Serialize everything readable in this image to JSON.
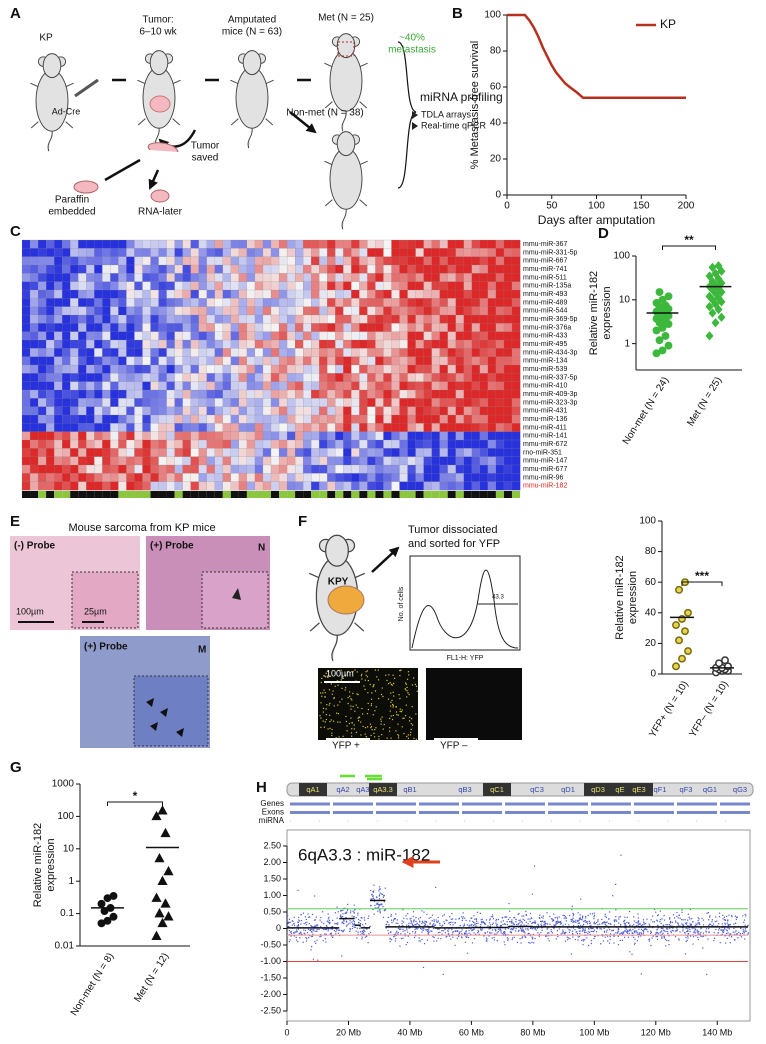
{
  "panel_labels": {
    "a": "A",
    "b": "B",
    "c": "C",
    "d": "D",
    "e": "E",
    "f": "F",
    "g": "G",
    "h": "H"
  },
  "panel_a": {
    "kp": "KP",
    "tumor_1": "Tumor:",
    "tumor_2": "6–10 wk",
    "amputated_1": "Amputated",
    "amputated_2": "mice (N = 63)",
    "met": "Met (N = 25)",
    "rate_1": "~40%",
    "rate_2": "metastasis",
    "ad_cre": "Ad-Cre",
    "non_met": "Non-met (N = 38)",
    "profiling": "miRNA profiling",
    "method_1": "TDLA arrays",
    "method_2": "Real-time qPCR",
    "saved_1": "Tumor",
    "saved_2": "saved",
    "paraffin_1": "Paraffin",
    "paraffin_2": "embedded",
    "rna_later": "RNA-later"
  },
  "heatmap_c": {
    "rows": [
      "mmu-miR-367",
      "mmu-miR-331-5p",
      "mmu-miR-667",
      "mmu-miR-741",
      "mmu-miR-511",
      "mmu-miR-135a",
      "mmu-miR-493",
      "mmu-miR-489",
      "mmu-miR-544",
      "mmu-miR-369-5p",
      "mmu-miR-376a",
      "mmu-miR-433",
      "mmu-miR-495",
      "mmu-miR-434-3p",
      "mmu-miR-134",
      "mmu-miR-539",
      "mmu-miR-337-5p",
      "mmu-miR-410",
      "mmu-miR-409-3p",
      "mmu-miR-323-3p",
      "mmu-miR-431",
      "mmu-miR-136",
      "mmu-miR-411",
      "mmu-miR-141",
      "mmu-miR-672",
      "rno-miR-351",
      "mmu-miR-147",
      "mmu-miR-677",
      "mmu-miR-96",
      "mmu-miR-182"
    ],
    "highlight_index": 29,
    "highlight_color": "#e0201b"
  },
  "panel_e": {
    "title": "Mouse sarcoma from KP mice",
    "neg_probe": "(-) Probe",
    "pos_probe_n": "(+) Probe",
    "n": "N",
    "pos_probe_m": "(+) Probe",
    "m": "M",
    "scale_main": "100µm",
    "scale_inset": "25µm"
  },
  "panel_f": {
    "kpy": "KPY",
    "sort_1": "Tumor dissociated",
    "sort_2": "and sorted for YFP",
    "hist_ylabel": "No. of cells",
    "hist_xlabel": "FL1-H: YFP",
    "gate_value": "43.3",
    "scale": "100µm",
    "yfp_pos": "YFP +",
    "yfp_neg": "YFP –"
  },
  "chart_data": [
    {
      "type": "line",
      "ylabel": "% Metastasis-free survival",
      "xlabel": "Days after amputation",
      "x": [
        0,
        20,
        25,
        30,
        35,
        40,
        45,
        50,
        55,
        60,
        65,
        70,
        78,
        85,
        200
      ],
      "series": [
        {
          "name": "KP",
          "color": "#b5301f",
          "values": [
            100,
            100,
            97,
            93,
            88,
            82,
            77,
            72,
            68,
            65,
            62,
            60,
            57,
            54,
            54
          ]
        }
      ],
      "xlim": [
        0,
        200
      ],
      "xticks": [
        0,
        50,
        100,
        150,
        200
      ],
      "ylim": [
        0,
        100
      ],
      "yticks": [
        0,
        20,
        40,
        60,
        80,
        100
      ],
      "legend": "upper right"
    },
    {
      "type": "dot",
      "ylabel_lines": [
        "Relative miR-182",
        "expression"
      ],
      "categories": [
        "Non-met (N = 24)",
        "Met (N = 25)"
      ],
      "values": [
        [
          0.6,
          0.7,
          0.9,
          1.2,
          1.5,
          2,
          2.3,
          2.8,
          3,
          3.3,
          3.7,
          4,
          4.3,
          4.6,
          5,
          5.4,
          5.8,
          6.2,
          6.8,
          7.5,
          8.5,
          10,
          12,
          15
        ],
        [
          1.5,
          3,
          4,
          5,
          6,
          7,
          8,
          9,
          10,
          11,
          12,
          14,
          15,
          17,
          19,
          20,
          22,
          24,
          26,
          30,
          35,
          40,
          45,
          55,
          60
        ]
      ],
      "means": [
        5,
        20
      ],
      "markers": [
        "circle",
        "diamond"
      ],
      "colors": [
        "#3cb83c",
        "#3cb83c"
      ],
      "edge_colors": [
        "#3cb83c",
        "#3cb83c"
      ],
      "log": true,
      "ylim": [
        0.25,
        100
      ],
      "yticks": [
        1,
        10,
        100
      ],
      "significance": "**"
    },
    {
      "type": "dot",
      "ylabel_lines": [
        "Relative miR-182",
        "expression"
      ],
      "categories": [
        "YFP+ (N = 10)",
        "YFP– (N = 10)"
      ],
      "values": [
        [
          5,
          10,
          15,
          22,
          28,
          32,
          36,
          40,
          55,
          60
        ],
        [
          1,
          2,
          2,
          3,
          3,
          4,
          4,
          5,
          7,
          9
        ]
      ],
      "means": [
        37,
        4
      ],
      "markers": [
        "circle",
        "circle"
      ],
      "colors": [
        "#e8d44d",
        "#ffffff"
      ],
      "edge_colors": [
        "#7a6a10",
        "#333333"
      ],
      "log": false,
      "ylim": [
        0,
        100
      ],
      "yticks": [
        0,
        20,
        40,
        60,
        80,
        100
      ],
      "significance": "***"
    },
    {
      "type": "dot",
      "ylabel_lines": [
        "Relative miR-182",
        "expression"
      ],
      "categories": [
        "Non-met (N = 8)",
        "Met (N = 12)"
      ],
      "values": [
        [
          0.05,
          0.06,
          0.08,
          0.12,
          0.15,
          0.2,
          0.3,
          0.35
        ],
        [
          0.02,
          0.05,
          0.08,
          0.1,
          0.2,
          0.3,
          1,
          2,
          5,
          30,
          100,
          150
        ]
      ],
      "means": [
        0.15,
        11
      ],
      "markers": [
        "circle",
        "triangle"
      ],
      "colors": [
        "#111111",
        "#111111"
      ],
      "edge_colors": [
        "#111111",
        "#111111"
      ],
      "log": true,
      "ylim": [
        0.01,
        1000
      ],
      "yticks": [
        0.01,
        0.1,
        1,
        10,
        100,
        1000
      ],
      "significance": "*"
    },
    {
      "type": "genome",
      "annotation": "6qA3.3 : miR-182",
      "bands": [
        "qA1",
        "qA2",
        "qA3.1",
        "qA3.3",
        "qB1",
        "qB3",
        "qC1",
        "qC3",
        "qD1",
        "qD3",
        "qE1",
        "qE3",
        "qF1",
        "qF3",
        "qG1",
        "qG3"
      ],
      "tracks": [
        "Genes",
        "Exons",
        "miRNA"
      ],
      "xlim": [
        0,
        150
      ],
      "xticks": [
        0,
        {
          "value": 20,
          "label": "20 Mb"
        },
        {
          "value": 40,
          "label": "40 Mb"
        },
        {
          "value": 60,
          "label": "60 Mb"
        },
        {
          "value": 80,
          "label": "80 Mb"
        },
        {
          "value": 100,
          "label": "100 Mb"
        },
        {
          "value": 120,
          "label": "120 Mb"
        },
        {
          "value": 140,
          "label": "140 Mb"
        }
      ],
      "ylim": [
        -2.5,
        2.5
      ],
      "yticks": [
        {
          "value": 2.5,
          "label": "2.50"
        },
        {
          "value": 2,
          "label": "2.00"
        },
        {
          "value": 1.5,
          "label": "1.50"
        },
        {
          "value": 1,
          "label": "1.00"
        },
        {
          "value": 0.5,
          "label": "0.50"
        },
        0,
        {
          "value": -0.5,
          "label": "-0.50"
        },
        {
          "value": -1,
          "label": "-1.00"
        },
        {
          "value": -1.5,
          "label": "-1.50"
        },
        {
          "value": -2,
          "label": "-2.00"
        },
        {
          "value": -2.5,
          "label": "-2.50"
        }
      ],
      "thresholds": [
        {
          "value": 0.6,
          "color": "#5ccf5c"
        },
        {
          "value": -0.2,
          "color": "#e89090"
        },
        {
          "value": -1,
          "color": "#e04040"
        }
      ],
      "segments": {
        "x_start": [
          0,
          17,
          22,
          24,
          27,
          32,
          36,
          48,
          60,
          72,
          80,
          100,
          120
        ],
        "x_end": [
          17,
          22,
          24,
          27,
          32,
          36,
          48,
          60,
          72,
          80,
          100,
          120,
          150
        ],
        "values": [
          0.02,
          0.3,
          0.1,
          0.02,
          0.85,
          0.05,
          0.05,
          0.02,
          0.03,
          0.06,
          0.05,
          0.05,
          0.05
        ]
      }
    }
  ]
}
